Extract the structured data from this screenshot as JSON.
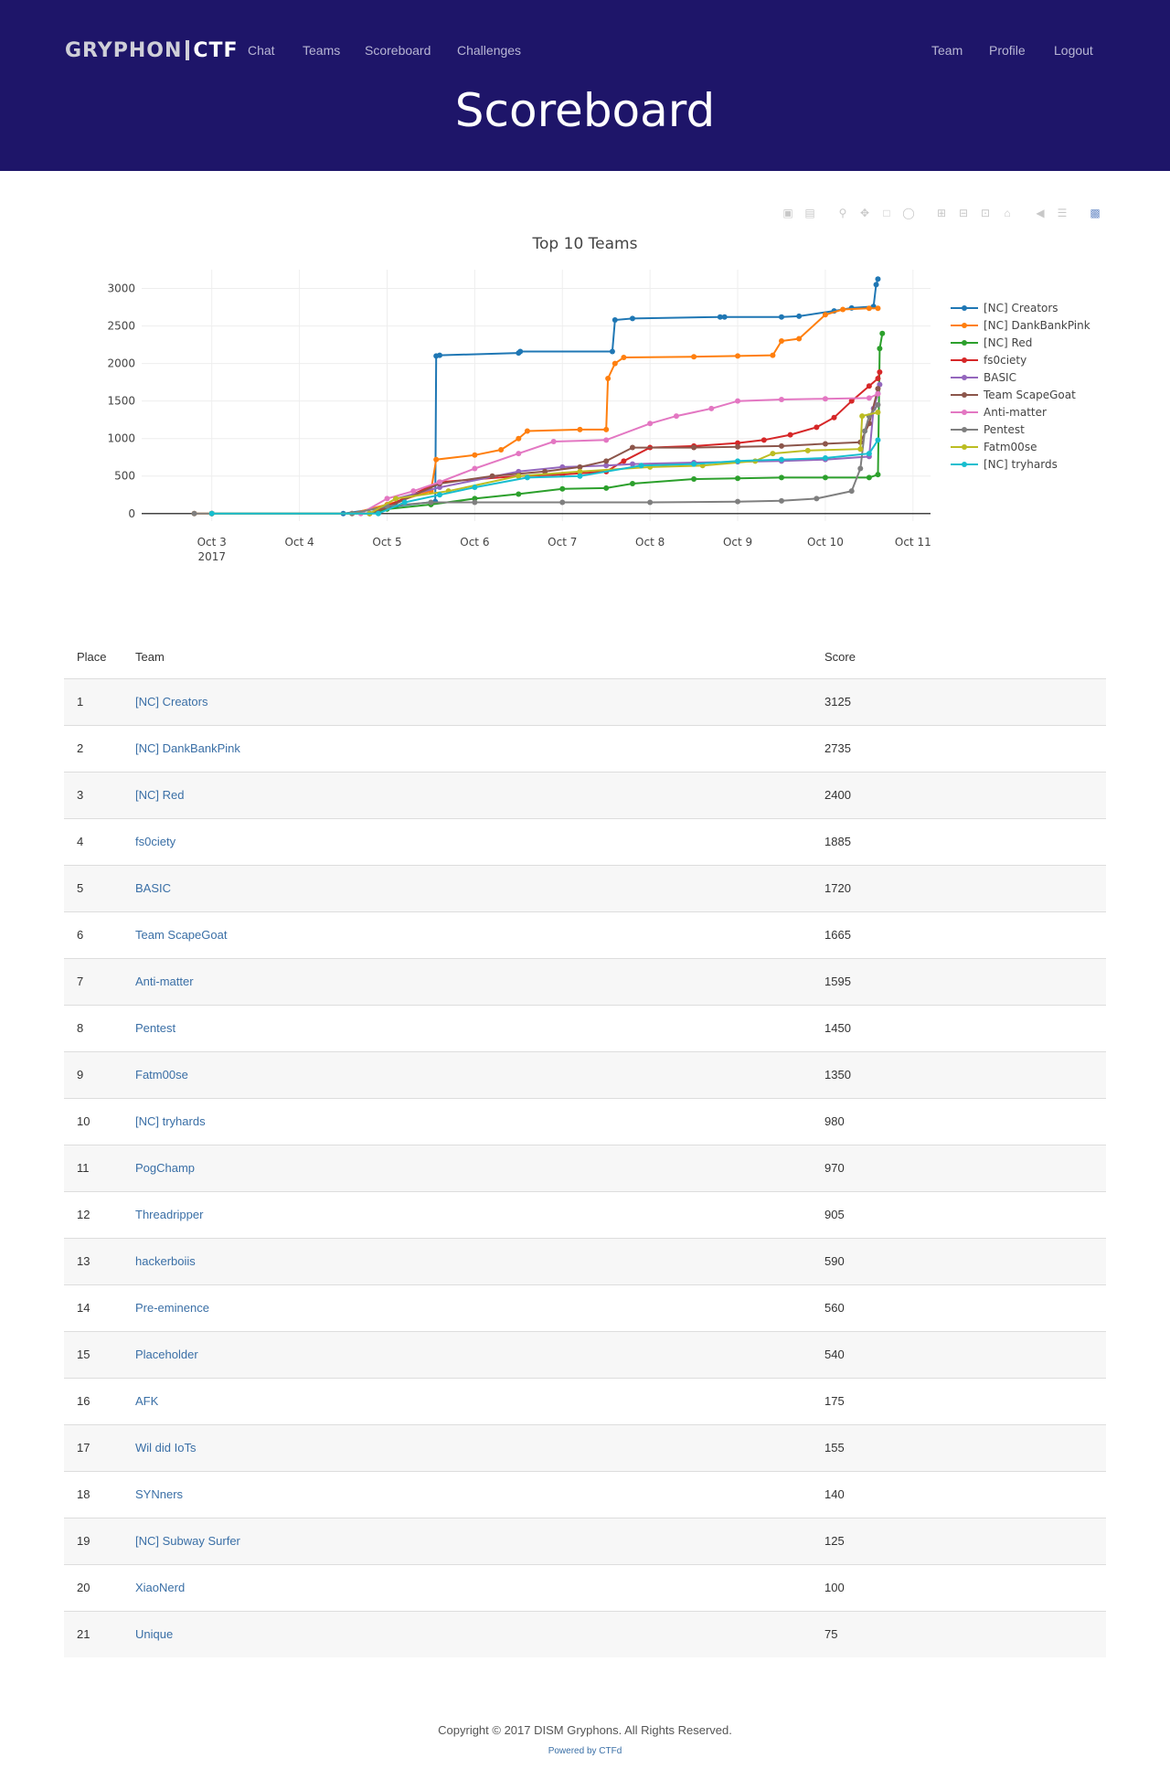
{
  "navbar": {
    "brand_left": "GRYPHON",
    "brand_right": "CTF",
    "links": [
      {
        "label": "Chat"
      },
      {
        "label": "Teams"
      },
      {
        "label": "Scoreboard"
      },
      {
        "label": "Challenges"
      }
    ],
    "right_links": [
      {
        "label": "Team"
      },
      {
        "label": "Profile"
      },
      {
        "label": "Logout"
      }
    ],
    "background_color": "#1e1569"
  },
  "page": {
    "title": "Scoreboard"
  },
  "toolbar": {
    "icons": [
      "camera-icon",
      "save-icon",
      "zoom-icon",
      "pan-icon",
      "box-select-icon",
      "lasso-icon",
      "zoom-in-icon",
      "zoom-out-icon",
      "autoscale-icon",
      "reset-axes-icon",
      "hover-closest-icon",
      "hover-compare-icon",
      "plotly-logo-icon"
    ]
  },
  "chart_data": {
    "type": "line",
    "title": "Top 10 Teams",
    "xlabel": "",
    "ylabel": "",
    "x_ticks": [
      "Oct 3",
      "Oct 4",
      "Oct 5",
      "Oct 6",
      "Oct 7",
      "Oct 8",
      "Oct 9",
      "Oct 10",
      "Oct 11"
    ],
    "x_tick_year": "2017",
    "x_range": [
      2.2,
      11.2
    ],
    "y_ticks": [
      0,
      500,
      1000,
      1500,
      2000,
      2500,
      3000
    ],
    "y_range": [
      -100,
      3250
    ],
    "grid": true,
    "legend": "right",
    "series": [
      {
        "name": "[NC] Creators",
        "color": "#1f77b4",
        "x": [
          3.0,
          4.5,
          5.1,
          5.55,
          5.56,
          5.6,
          6.5,
          6.52,
          7.57,
          7.6,
          7.8,
          8.8,
          8.85,
          9.5,
          9.7,
          10.1,
          10.3,
          10.55,
          10.58,
          10.6
        ],
        "y": [
          0,
          0,
          100,
          160,
          2100,
          2110,
          2140,
          2160,
          2160,
          2580,
          2600,
          2620,
          2620,
          2620,
          2630,
          2700,
          2740,
          2760,
          3050,
          3125
        ]
      },
      {
        "name": "[NC] DankBankPink",
        "color": "#ff7f0e",
        "x": [
          2.8,
          4.6,
          5.0,
          5.5,
          5.56,
          6.0,
          6.3,
          6.5,
          6.6,
          7.2,
          7.5,
          7.52,
          7.6,
          7.7,
          8.5,
          9.0,
          9.4,
          9.5,
          9.7,
          10.0,
          10.2,
          10.5,
          10.6
        ],
        "y": [
          0,
          0,
          120,
          300,
          720,
          780,
          850,
          1000,
          1100,
          1120,
          1120,
          1800,
          2000,
          2080,
          2090,
          2100,
          2110,
          2300,
          2330,
          2650,
          2720,
          2735,
          2735
        ]
      },
      {
        "name": "[NC] Red",
        "color": "#2ca02c",
        "x": [
          3.0,
          4.8,
          5.0,
          5.5,
          6.0,
          6.5,
          7.0,
          7.5,
          7.8,
          8.5,
          9.0,
          9.5,
          10.0,
          10.5,
          10.6,
          10.62,
          10.65
        ],
        "y": [
          0,
          0,
          60,
          120,
          200,
          260,
          330,
          340,
          400,
          460,
          470,
          480,
          480,
          480,
          520,
          2200,
          2400
        ]
      },
      {
        "name": "fs0ciety",
        "color": "#d62728",
        "x": [
          3.0,
          4.8,
          5.0,
          5.6,
          6.5,
          7.0,
          7.5,
          7.7,
          8.0,
          8.5,
          9.0,
          9.3,
          9.6,
          9.9,
          10.1,
          10.3,
          10.5,
          10.6,
          10.62
        ],
        "y": [
          0,
          0,
          100,
          420,
          500,
          520,
          560,
          700,
          880,
          900,
          940,
          980,
          1050,
          1150,
          1280,
          1500,
          1700,
          1800,
          1885
        ]
      },
      {
        "name": "BASIC",
        "color": "#9467bd",
        "x": [
          3.0,
          4.8,
          5.1,
          5.6,
          6.5,
          7.0,
          7.5,
          7.8,
          8.5,
          9.0,
          9.5,
          10.0,
          10.5,
          10.55,
          10.6,
          10.62
        ],
        "y": [
          0,
          0,
          200,
          350,
          560,
          620,
          640,
          660,
          680,
          690,
          700,
          720,
          760,
          1400,
          1600,
          1720
        ]
      },
      {
        "name": "Team ScapeGoat",
        "color": "#8c564b",
        "x": [
          3.0,
          4.8,
          5.0,
          5.6,
          6.2,
          6.8,
          7.2,
          7.5,
          7.8,
          8.5,
          9.0,
          9.5,
          10.0,
          10.4,
          10.5,
          10.6
        ],
        "y": [
          0,
          0,
          80,
          400,
          500,
          560,
          620,
          700,
          880,
          880,
          890,
          900,
          930,
          950,
          1200,
          1665
        ]
      },
      {
        "name": "Anti-matter",
        "color": "#e377c2",
        "x": [
          3.0,
          4.7,
          5.0,
          5.3,
          5.6,
          6.0,
          6.5,
          6.9,
          7.5,
          8.0,
          8.3,
          8.7,
          9.0,
          9.5,
          10.0,
          10.5,
          10.6
        ],
        "y": [
          0,
          0,
          200,
          300,
          420,
          600,
          800,
          960,
          980,
          1200,
          1300,
          1400,
          1500,
          1520,
          1530,
          1540,
          1595
        ]
      },
      {
        "name": "Pentest",
        "color": "#7f7f7f",
        "x": [
          2.8,
          4.6,
          5.0,
          5.5,
          6.0,
          7.0,
          8.0,
          9.0,
          9.5,
          9.9,
          10.3,
          10.4,
          10.45,
          10.5,
          10.6
        ],
        "y": [
          0,
          0,
          100,
          150,
          150,
          150,
          150,
          160,
          170,
          200,
          300,
          600,
          1100,
          1300,
          1450
        ]
      },
      {
        "name": "Fatm00se",
        "color": "#bcbd22",
        "x": [
          3.0,
          4.8,
          5.1,
          5.7,
          6.5,
          7.2,
          8.0,
          8.6,
          9.2,
          9.4,
          9.8,
          10.4,
          10.42,
          10.6
        ],
        "y": [
          0,
          0,
          200,
          300,
          500,
          560,
          620,
          640,
          700,
          800,
          840,
          860,
          1300,
          1350
        ]
      },
      {
        "name": "[NC] tryhards",
        "color": "#17becf",
        "x": [
          3.0,
          4.9,
          5.2,
          5.6,
          6.0,
          6.6,
          7.2,
          7.9,
          8.5,
          9.0,
          9.5,
          10.0,
          10.5,
          10.6
        ],
        "y": [
          0,
          0,
          150,
          250,
          350,
          480,
          500,
          640,
          660,
          700,
          720,
          740,
          800,
          980
        ]
      }
    ]
  },
  "table": {
    "headers": {
      "place": "Place",
      "team": "Team",
      "score": "Score"
    },
    "rows": [
      {
        "place": "1",
        "team": "[NC] Creators",
        "score": "3125"
      },
      {
        "place": "2",
        "team": "[NC] DankBankPink",
        "score": "2735"
      },
      {
        "place": "3",
        "team": "[NC] Red",
        "score": "2400"
      },
      {
        "place": "4",
        "team": "fs0ciety",
        "score": "1885"
      },
      {
        "place": "5",
        "team": "BASIC",
        "score": "1720"
      },
      {
        "place": "6",
        "team": "Team ScapeGoat",
        "score": "1665"
      },
      {
        "place": "7",
        "team": "Anti-matter",
        "score": "1595"
      },
      {
        "place": "8",
        "team": "Pentest",
        "score": "1450"
      },
      {
        "place": "9",
        "team": "Fatm00se",
        "score": "1350"
      },
      {
        "place": "10",
        "team": "[NC] tryhards",
        "score": "980"
      },
      {
        "place": "11",
        "team": "PogChamp",
        "score": "970"
      },
      {
        "place": "12",
        "team": "Threadripper",
        "score": "905"
      },
      {
        "place": "13",
        "team": "hackerboiis",
        "score": "590"
      },
      {
        "place": "14",
        "team": "Pre-eminence",
        "score": "560"
      },
      {
        "place": "15",
        "team": "Placeholder",
        "score": "540"
      },
      {
        "place": "16",
        "team": "AFK",
        "score": "175"
      },
      {
        "place": "17",
        "team": "Wil did IoTs",
        "score": "155"
      },
      {
        "place": "18",
        "team": "SYNners",
        "score": "140"
      },
      {
        "place": "19",
        "team": "[NC] Subway Surfer",
        "score": "125"
      },
      {
        "place": "20",
        "team": "XiaoNerd",
        "score": "100"
      },
      {
        "place": "21",
        "team": "Unique",
        "score": "75"
      }
    ]
  },
  "footer": {
    "copyright": "Copyright © 2017 DISM Gryphons. All Rights Reserved.",
    "powered": "Powered by CTFd"
  }
}
